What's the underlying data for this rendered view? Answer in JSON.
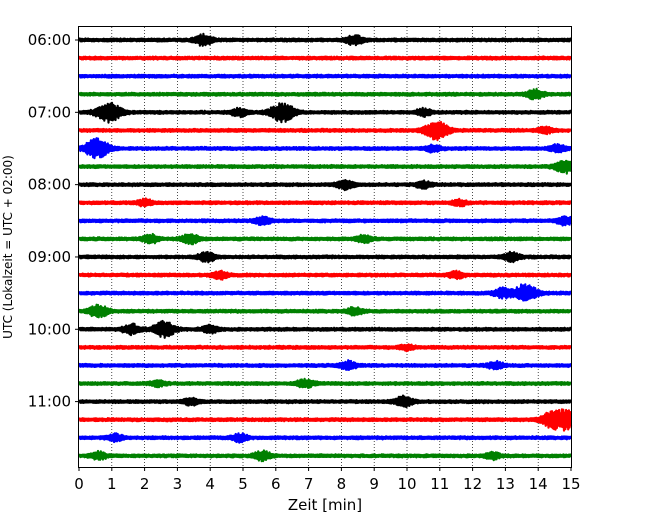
{
  "chart_data": {
    "type": "line",
    "title": "",
    "xlabel": "Zeit  [min]",
    "ylabel": "UTC (Lokalzeit = UTC + 02:00)",
    "xlim": [
      0,
      15
    ],
    "x_ticks": [
      "0",
      "1",
      "2",
      "3",
      "4",
      "5",
      "6",
      "7",
      "8",
      "9",
      "10",
      "11",
      "12",
      "13",
      "14",
      "15"
    ],
    "y_tick_labels": [
      "06:00",
      "07:00",
      "08:00",
      "09:00",
      "10:00",
      "11:00"
    ],
    "y_tick_trace_index": [
      0,
      4,
      8,
      12,
      16,
      20
    ],
    "grid": {
      "vertical": true,
      "style": "dotted"
    },
    "trace_interval_min": 15,
    "colors": [
      "#000000",
      "#ff0000",
      "#0000ff",
      "#008000"
    ],
    "traces": [
      {
        "start": "06:00",
        "color": "#000000",
        "events": [
          {
            "t": 3.8,
            "amp": 0.6
          },
          {
            "t": 8.4,
            "amp": 0.55
          }
        ]
      },
      {
        "start": "06:15",
        "color": "#ff0000",
        "events": []
      },
      {
        "start": "06:30",
        "color": "#0000ff",
        "events": []
      },
      {
        "start": "06:45",
        "color": "#008000",
        "events": [
          {
            "t": 13.9,
            "amp": 0.5
          }
        ]
      },
      {
        "start": "07:00",
        "color": "#000000",
        "events": [
          {
            "t": 0.9,
            "amp": 1.1
          },
          {
            "t": 4.9,
            "amp": 0.45
          },
          {
            "t": 6.2,
            "amp": 1.05
          },
          {
            "t": 10.5,
            "amp": 0.4
          }
        ]
      },
      {
        "start": "07:15",
        "color": "#ff0000",
        "events": [
          {
            "t": 10.9,
            "amp": 1.0
          },
          {
            "t": 14.2,
            "amp": 0.35
          }
        ]
      },
      {
        "start": "07:30",
        "color": "#0000ff",
        "events": [
          {
            "t": 0.55,
            "amp": 1.1
          },
          {
            "t": 10.8,
            "amp": 0.35
          },
          {
            "t": 14.6,
            "amp": 0.4
          }
        ]
      },
      {
        "start": "07:45",
        "color": "#008000",
        "events": [
          {
            "t": 14.8,
            "amp": 0.7
          }
        ]
      },
      {
        "start": "08:00",
        "color": "#000000",
        "events": [
          {
            "t": 8.1,
            "amp": 0.5
          },
          {
            "t": 10.5,
            "amp": 0.35
          }
        ]
      },
      {
        "start": "08:15",
        "color": "#ff0000",
        "events": [
          {
            "t": 2.0,
            "amp": 0.35
          },
          {
            "t": 11.6,
            "amp": 0.3
          }
        ]
      },
      {
        "start": "08:30",
        "color": "#0000ff",
        "events": [
          {
            "t": 5.6,
            "amp": 0.45
          },
          {
            "t": 14.8,
            "amp": 0.45
          }
        ]
      },
      {
        "start": "08:45",
        "color": "#008000",
        "events": [
          {
            "t": 2.2,
            "amp": 0.45
          },
          {
            "t": 3.4,
            "amp": 0.55
          },
          {
            "t": 8.7,
            "amp": 0.4
          }
        ]
      },
      {
        "start": "09:00",
        "color": "#000000",
        "events": [
          {
            "t": 3.9,
            "amp": 0.5
          },
          {
            "t": 13.2,
            "amp": 0.45
          }
        ]
      },
      {
        "start": "09:15",
        "color": "#ff0000",
        "events": [
          {
            "t": 4.3,
            "amp": 0.4
          },
          {
            "t": 11.5,
            "amp": 0.35
          }
        ]
      },
      {
        "start": "09:30",
        "color": "#0000ff",
        "events": [
          {
            "t": 12.9,
            "amp": 0.5
          },
          {
            "t": 13.6,
            "amp": 1.0
          }
        ]
      },
      {
        "start": "09:45",
        "color": "#008000",
        "events": [
          {
            "t": 0.6,
            "amp": 0.7
          },
          {
            "t": 8.4,
            "amp": 0.4
          }
        ]
      },
      {
        "start": "10:00",
        "color": "#000000",
        "events": [
          {
            "t": 1.6,
            "amp": 0.55
          },
          {
            "t": 2.6,
            "amp": 0.85
          },
          {
            "t": 4.0,
            "amp": 0.4
          }
        ]
      },
      {
        "start": "10:15",
        "color": "#ff0000",
        "events": [
          {
            "t": 10.0,
            "amp": 0.3
          }
        ]
      },
      {
        "start": "10:30",
        "color": "#0000ff",
        "events": [
          {
            "t": 8.2,
            "amp": 0.45
          },
          {
            "t": 12.7,
            "amp": 0.4
          }
        ]
      },
      {
        "start": "10:45",
        "color": "#008000",
        "events": [
          {
            "t": 6.9,
            "amp": 0.45
          },
          {
            "t": 2.4,
            "amp": 0.3
          }
        ]
      },
      {
        "start": "11:00",
        "color": "#000000",
        "events": [
          {
            "t": 9.9,
            "amp": 0.55
          },
          {
            "t": 3.4,
            "amp": 0.35
          }
        ]
      },
      {
        "start": "11:15",
        "color": "#ff0000",
        "events": [
          {
            "t": 14.4,
            "amp": 0.8
          },
          {
            "t": 14.9,
            "amp": 1.1
          }
        ]
      },
      {
        "start": "11:30",
        "color": "#0000ff",
        "events": [
          {
            "t": 1.1,
            "amp": 0.4
          },
          {
            "t": 4.9,
            "amp": 0.4
          }
        ]
      },
      {
        "start": "11:45",
        "color": "#008000",
        "events": [
          {
            "t": 0.6,
            "amp": 0.4
          },
          {
            "t": 5.6,
            "amp": 0.5
          },
          {
            "t": 12.6,
            "amp": 0.35
          }
        ]
      }
    ]
  }
}
